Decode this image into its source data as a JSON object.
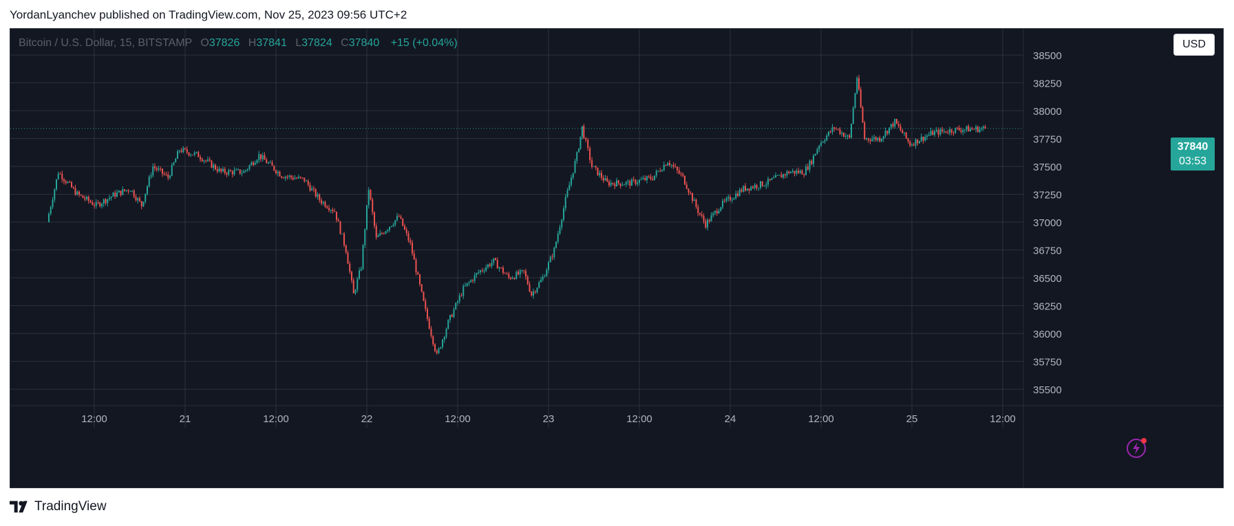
{
  "header": {
    "published_line": "YordanLyanchev published on TradingView.com, Nov 25, 2023 09:56 UTC+2"
  },
  "legend": {
    "symbol": "Bitcoin / U.S. Dollar, 15, BITSTAMP",
    "open_label": "O",
    "open": "37826",
    "high_label": "H",
    "high": "37841",
    "low_label": "L",
    "low": "37824",
    "close_label": "C",
    "close": "37840",
    "change": "+15 (+0.04%)"
  },
  "currency_button": "USD",
  "price_badge": {
    "price": "37840",
    "countdown": "03:53"
  },
  "footer": {
    "brand": "TradingView"
  },
  "colors": {
    "background": "#131722",
    "grid": "#434651",
    "up": "#26a69a",
    "down": "#ef5350",
    "axis_text": "#b2b5be"
  },
  "icons": {
    "flash": "lightning-icon",
    "logo": "tradingview-logo-icon"
  },
  "chart_data": {
    "type": "candlestick",
    "title": "Bitcoin / U.S. Dollar, 15, BITSTAMP",
    "interval": "15",
    "exchange": "BITSTAMP",
    "x_ticks": [
      "12:00",
      "21",
      "12:00",
      "22",
      "12:00",
      "23",
      "12:00",
      "24",
      "12:00",
      "25",
      "12:00"
    ],
    "y_ticks": [
      "35500",
      "35750",
      "36000",
      "36250",
      "36500",
      "36750",
      "37000",
      "37250",
      "37500",
      "37750",
      "38000",
      "38250",
      "38500"
    ],
    "ylim": [
      35350,
      38600
    ],
    "current_price": 37840,
    "grid": true,
    "price_path": [
      {
        "t": "20 Nov 06:00",
        "p": 37000
      },
      {
        "t": "20 Nov 07:30",
        "p": 37450
      },
      {
        "t": "20 Nov 10:00",
        "p": 37250
      },
      {
        "t": "20 Nov 12:30",
        "p": 37150
      },
      {
        "t": "20 Nov 15:00",
        "p": 37250
      },
      {
        "t": "20 Nov 17:00",
        "p": 37300
      },
      {
        "t": "20 Nov 18:30",
        "p": 37150
      },
      {
        "t": "20 Nov 20:00",
        "p": 37500
      },
      {
        "t": "20 Nov 22:00",
        "p": 37400
      },
      {
        "t": "20 Nov 23:30",
        "p": 37650
      },
      {
        "t": "21 Nov 02:00",
        "p": 37600
      },
      {
        "t": "21 Nov 05:00",
        "p": 37450
      },
      {
        "t": "21 Nov 08:00",
        "p": 37450
      },
      {
        "t": "21 Nov 10:00",
        "p": 37600
      },
      {
        "t": "21 Nov 13:00",
        "p": 37420
      },
      {
        "t": "21 Nov 16:00",
        "p": 37380
      },
      {
        "t": "21 Nov 18:00",
        "p": 37200
      },
      {
        "t": "21 Nov 20:00",
        "p": 37100
      },
      {
        "t": "21 Nov 21:30",
        "p": 36750
      },
      {
        "t": "21 Nov 22:30",
        "p": 36350
      },
      {
        "t": "21 Nov 23:30",
        "p": 36600
      },
      {
        "t": "22 Nov 00:30",
        "p": 37300
      },
      {
        "t": "22 Nov 01:30",
        "p": 36850
      },
      {
        "t": "22 Nov 03:00",
        "p": 36950
      },
      {
        "t": "22 Nov 04:30",
        "p": 37050
      },
      {
        "t": "22 Nov 06:00",
        "p": 36800
      },
      {
        "t": "22 Nov 08:00",
        "p": 36200
      },
      {
        "t": "22 Nov 09:30",
        "p": 35800
      },
      {
        "t": "22 Nov 11:00",
        "p": 36100
      },
      {
        "t": "22 Nov 13:00",
        "p": 36400
      },
      {
        "t": "22 Nov 15:00",
        "p": 36550
      },
      {
        "t": "22 Nov 17:00",
        "p": 36650
      },
      {
        "t": "22 Nov 19:00",
        "p": 36500
      },
      {
        "t": "22 Nov 21:00",
        "p": 36550
      },
      {
        "t": "22 Nov 22:00",
        "p": 36350
      },
      {
        "t": "22 Nov 23:30",
        "p": 36500
      },
      {
        "t": "23 Nov 01:00",
        "p": 36750
      },
      {
        "t": "23 Nov 02:30",
        "p": 37200
      },
      {
        "t": "23 Nov 04:00",
        "p": 37600
      },
      {
        "t": "23 Nov 04:40",
        "p": 37850
      },
      {
        "t": "23 Nov 06:00",
        "p": 37500
      },
      {
        "t": "23 Nov 08:00",
        "p": 37350
      },
      {
        "t": "23 Nov 11:00",
        "p": 37350
      },
      {
        "t": "23 Nov 14:00",
        "p": 37400
      },
      {
        "t": "23 Nov 16:00",
        "p": 37550
      },
      {
        "t": "23 Nov 18:00",
        "p": 37400
      },
      {
        "t": "23 Nov 20:00",
        "p": 37100
      },
      {
        "t": "23 Nov 21:00",
        "p": 36980
      },
      {
        "t": "23 Nov 23:00",
        "p": 37150
      },
      {
        "t": "24 Nov 02:00",
        "p": 37300
      },
      {
        "t": "24 Nov 05:00",
        "p": 37350
      },
      {
        "t": "24 Nov 08:00",
        "p": 37450
      },
      {
        "t": "24 Nov 10:00",
        "p": 37450
      },
      {
        "t": "24 Nov 11:00",
        "p": 37550
      },
      {
        "t": "24 Nov 12:00",
        "p": 37700
      },
      {
        "t": "24 Nov 14:00",
        "p": 37850
      },
      {
        "t": "24 Nov 16:00",
        "p": 37750
      },
      {
        "t": "24 Nov 17:00",
        "p": 38300
      },
      {
        "t": "24 Nov 18:00",
        "p": 37750
      },
      {
        "t": "24 Nov 20:00",
        "p": 37750
      },
      {
        "t": "24 Nov 22:00",
        "p": 37900
      },
      {
        "t": "25 Nov 00:00",
        "p": 37700
      },
      {
        "t": "25 Nov 03:00",
        "p": 37800
      },
      {
        "t": "25 Nov 06:00",
        "p": 37830
      },
      {
        "t": "25 Nov 09:56",
        "p": 37840
      }
    ]
  }
}
